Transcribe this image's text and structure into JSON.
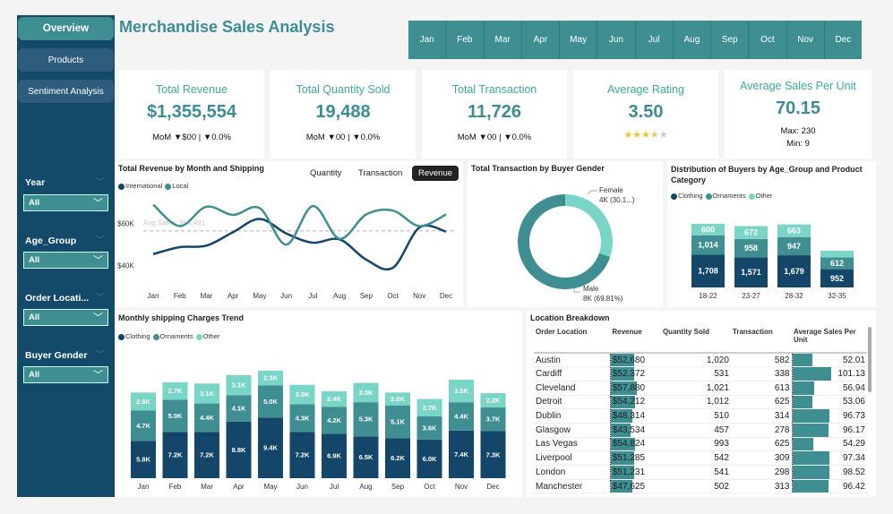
{
  "title": "Merchandise Sales Analysis",
  "nav": [
    {
      "label": "Overview",
      "active": true
    },
    {
      "label": "Products"
    },
    {
      "label": "Sentiment Analysis"
    }
  ],
  "filters": [
    {
      "label": "Year",
      "value": "All"
    },
    {
      "label": "Age_Group",
      "value": "All"
    },
    {
      "label": "Order Locati...",
      "value": "All"
    },
    {
      "label": "Buyer Gender",
      "value": "All"
    }
  ],
  "months": [
    "Jan",
    "Feb",
    "Mar",
    "Apr",
    "May",
    "Jun",
    "Jul",
    "Aug",
    "Sep",
    "Oct",
    "Nov",
    "Dec"
  ],
  "kpis": [
    {
      "label": "Total Revenue",
      "value": "$1,355,554",
      "sub": "MoM ▼$00 | ▼0.0%"
    },
    {
      "label": "Total Quantity Sold",
      "value": "19,488",
      "sub": "MoM ▼00 | ▼0.0%"
    },
    {
      "label": "Total Transaction",
      "value": "11,726",
      "sub": "MoM ▼00 | ▼0.0%"
    },
    {
      "label": "Average Rating",
      "value": "3.50",
      "stars": 3.5
    },
    {
      "label": "Average Sales Per Unit",
      "value": "70.15",
      "max": "Max: 230",
      "min": "Min: 9"
    }
  ],
  "colors": {
    "dark": "#134669",
    "teal": "#3f8f92",
    "light": "#79d5c5",
    "star": "#f2c12e"
  },
  "chart_data": [
    {
      "type": "line",
      "title": "Total Revenue by Month and Shipping",
      "toggles": [
        "Quantity",
        "Transaction",
        "Revenue"
      ],
      "active_toggle": "Revenue",
      "categories": [
        "Jan",
        "Feb",
        "Mar",
        "Apr",
        "May",
        "Jun",
        "Jul",
        "Aug",
        "Sep",
        "Oct",
        "Nov",
        "Dec"
      ],
      "yticks": [
        "$40K",
        "$60K"
      ],
      "ytick_values": [
        40000,
        60000
      ],
      "ylim": [
        30000,
        81000
      ],
      "reference_line": {
        "label": "Avg Sales: $56,481",
        "value": 56481
      },
      "series": [
        {
          "name": "International",
          "color": "#134669",
          "values": [
            45400,
            48700,
            49400,
            55800,
            62100,
            55200,
            50800,
            52400,
            42800,
            38900,
            58000,
            56100
          ]
        },
        {
          "name": "Local",
          "color": "#3f8f92",
          "values": [
            68900,
            58700,
            67900,
            64000,
            67200,
            49900,
            68200,
            52700,
            64200,
            66100,
            58700,
            64200
          ]
        }
      ]
    },
    {
      "type": "pie",
      "title": "Total Transaction by Buyer Gender",
      "donut": true,
      "slices": [
        {
          "name": "Female",
          "label": "4K (30.1...)",
          "percent": 30.19,
          "color": "#79d5c5"
        },
        {
          "name": "Male",
          "label": "8K (69.81%)",
          "percent": 69.81,
          "color": "#3f8f92"
        }
      ]
    },
    {
      "type": "bar",
      "stacked": true,
      "title": "Distribution of Buyers by Age_Group and Product Category",
      "categories": [
        "18-22",
        "23-27",
        "28-32",
        "32-35"
      ],
      "series": [
        {
          "name": "Clothing",
          "color": "#134669",
          "values": [
            1708,
            1571,
            1679,
            952
          ]
        },
        {
          "name": "Ornaments",
          "color": "#3f8f92",
          "values": [
            1014,
            958,
            947,
            612
          ]
        },
        {
          "name": "Other",
          "color": "#79d5c5",
          "values": [
            600,
            672,
            663,
            350
          ],
          "labels": [
            "600",
            "672",
            "663",
            ""
          ]
        }
      ]
    },
    {
      "type": "bar",
      "stacked": true,
      "title": "Monthly shipping Charges Trend",
      "categories": [
        "Jan",
        "Feb",
        "Mar",
        "Apr",
        "May",
        "Jun",
        "Jul",
        "Aug",
        "Sep",
        "Oct",
        "Nov",
        "Dec"
      ],
      "series": [
        {
          "name": "Clothing",
          "color": "#134669",
          "values": [
            5.8,
            7.2,
            7.2,
            8.8,
            9.4,
            7.2,
            6.9,
            6.5,
            6.2,
            6.0,
            7.4,
            7.3
          ]
        },
        {
          "name": "Ornaments",
          "color": "#3f8f92",
          "values": [
            4.7,
            5.0,
            4.4,
            4.1,
            5.0,
            4.3,
            4.2,
            5.3,
            5.1,
            3.6,
            4.4,
            3.7
          ]
        },
        {
          "name": "Other",
          "color": "#79d5c5",
          "values": [
            2.8,
            2.7,
            3.1,
            3.1,
            2.3,
            3.0,
            2.4,
            3.0,
            2.0,
            2.7,
            3.5,
            2.2
          ]
        }
      ],
      "unit": "K"
    }
  ],
  "table": {
    "title": "Location Breakdown",
    "columns": [
      "Order Location",
      "Revenue",
      "Quantity Sold",
      "Transaction",
      "Average Sales Per Unit"
    ],
    "rows": [
      [
        "Austin",
        "$52,680",
        "1,020",
        "582",
        "52.01"
      ],
      [
        "Cardiff",
        "$52,372",
        "531",
        "338",
        "101.13"
      ],
      [
        "Cleveland",
        "$57,880",
        "1,021",
        "613",
        "56.94"
      ],
      [
        "Detroit",
        "$54,212",
        "1,012",
        "625",
        "53.06"
      ],
      [
        "Dublin",
        "$48,314",
        "510",
        "314",
        "96.73"
      ],
      [
        "Glasgow",
        "$43,534",
        "457",
        "278",
        "96.17"
      ],
      [
        "Las Vegas",
        "$54,824",
        "993",
        "625",
        "54.29"
      ],
      [
        "Liverpool",
        "$51,285",
        "542",
        "309",
        "97.34"
      ],
      [
        "London",
        "$51,231",
        "541",
        "298",
        "98.52"
      ],
      [
        "Manchester",
        "$47,625",
        "502",
        "313",
        "96.42"
      ]
    ]
  }
}
